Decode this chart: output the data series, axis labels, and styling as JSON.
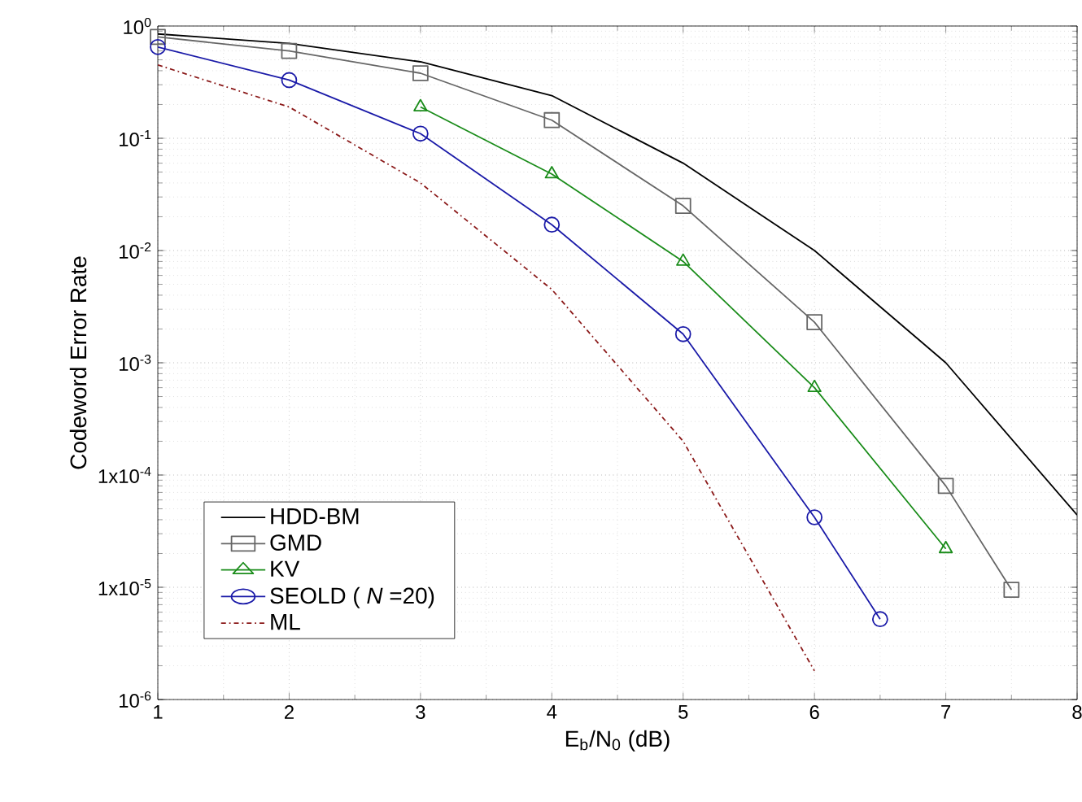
{
  "chart_data": {
    "type": "line",
    "xlabel": "E$_{b}$/N$_{0}$ (dB)",
    "ylabel": "Codeword Error Rate",
    "log": "y",
    "xlim": [
      1,
      8
    ],
    "xticks": [
      1,
      2,
      3,
      4,
      5,
      6,
      7,
      8
    ],
    "ylim": [
      1e-06,
      1
    ],
    "yticks": [
      {
        "value": 1e-06,
        "label": "10$^{-6}$"
      },
      {
        "value": 1e-05,
        "label": "1x10$^{-5}$"
      },
      {
        "value": 0.0001,
        "label": "1x10$^{-4}$"
      },
      {
        "value": 0.001,
        "label": "10$^{-3}$"
      },
      {
        "value": 0.01,
        "label": "10$^{-2}$"
      },
      {
        "value": 0.1,
        "label": "10$^{-1}$"
      },
      {
        "value": 1,
        "label": "10$^{0}$"
      }
    ],
    "grid": true,
    "legend": "bottom left",
    "series": [
      {
        "name": "HDD-BM",
        "color": "#000000",
        "marker": "none",
        "line_style": "solid",
        "x": [
          1,
          2,
          3,
          4,
          5,
          6,
          7,
          8
        ],
        "values": [
          0.85,
          0.7,
          0.48,
          0.24,
          0.06,
          0.01,
          0.001,
          4.4e-05
        ]
      },
      {
        "name": "GMD",
        "color": "#666666",
        "marker": "square",
        "line_style": "solid",
        "x": [
          1,
          2,
          3,
          4,
          5,
          6,
          7,
          7.5
        ],
        "values": [
          0.8,
          0.6,
          0.38,
          0.145,
          0.025,
          0.0023,
          8e-05,
          9.5e-06
        ]
      },
      {
        "name": "KV",
        "color": "#1a8c1a",
        "marker": "triangle",
        "line_style": "solid",
        "x": [
          3,
          4,
          5,
          6,
          7
        ],
        "values": [
          0.19,
          0.048,
          0.008,
          0.0006,
          2.2e-05
        ]
      },
      {
        "name": "SEOLD ( *N* =20)",
        "color": "#1a1aa8",
        "marker": "circle",
        "line_style": "solid",
        "x": [
          1,
          2,
          3,
          4,
          5,
          6,
          6.5
        ],
        "values": [
          0.65,
          0.33,
          0.11,
          0.017,
          0.0018,
          4.2e-05,
          5.2e-06
        ]
      },
      {
        "name": "ML",
        "color": "#8b1a1a",
        "marker": "none",
        "line_style": "dashdot",
        "x": [
          1,
          2,
          3,
          4,
          5,
          6
        ],
        "values": [
          0.45,
          0.19,
          0.04,
          0.0045,
          0.0002,
          1.8e-06
        ]
      }
    ]
  }
}
